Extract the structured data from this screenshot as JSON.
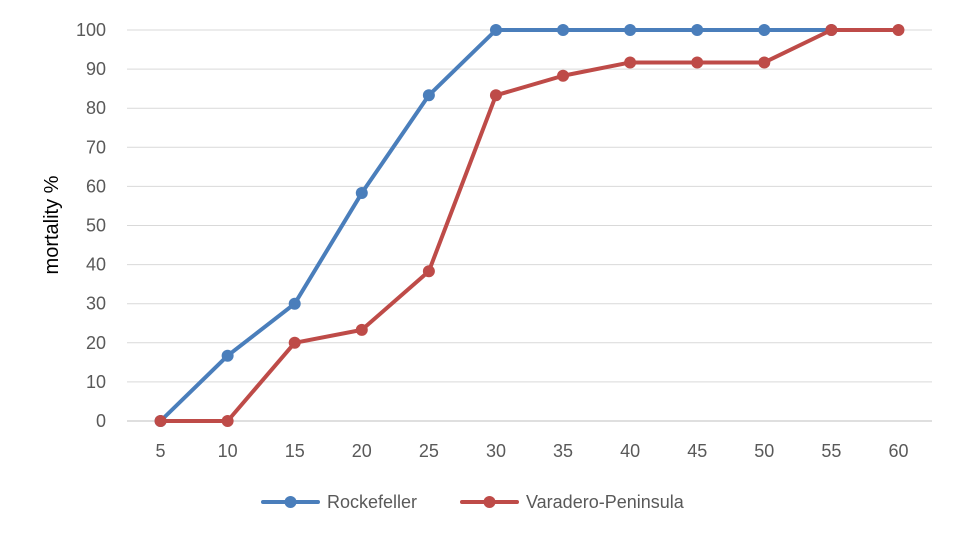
{
  "chart_data": {
    "type": "line",
    "title": "",
    "xlabel": "",
    "ylabel": "mortality %",
    "x": [
      5,
      10,
      15,
      20,
      25,
      30,
      35,
      40,
      45,
      50,
      55,
      60
    ],
    "ylim": [
      0,
      100
    ],
    "yticks": [
      0,
      10,
      20,
      30,
      40,
      50,
      60,
      70,
      80,
      90,
      100
    ],
    "grid": true,
    "legend": "bottom",
    "series": [
      {
        "name": "Rockefeller",
        "color": "#4a7ebb",
        "values": [
          0,
          16.7,
          30,
          58.3,
          83.3,
          100,
          100,
          100,
          100,
          100,
          100,
          null
        ]
      },
      {
        "name": "Varadero-Peninsula",
        "color": "#be4b48",
        "values": [
          0,
          0,
          20,
          23.3,
          38.3,
          83.3,
          88.3,
          91.7,
          91.7,
          91.7,
          100,
          100
        ]
      }
    ]
  }
}
